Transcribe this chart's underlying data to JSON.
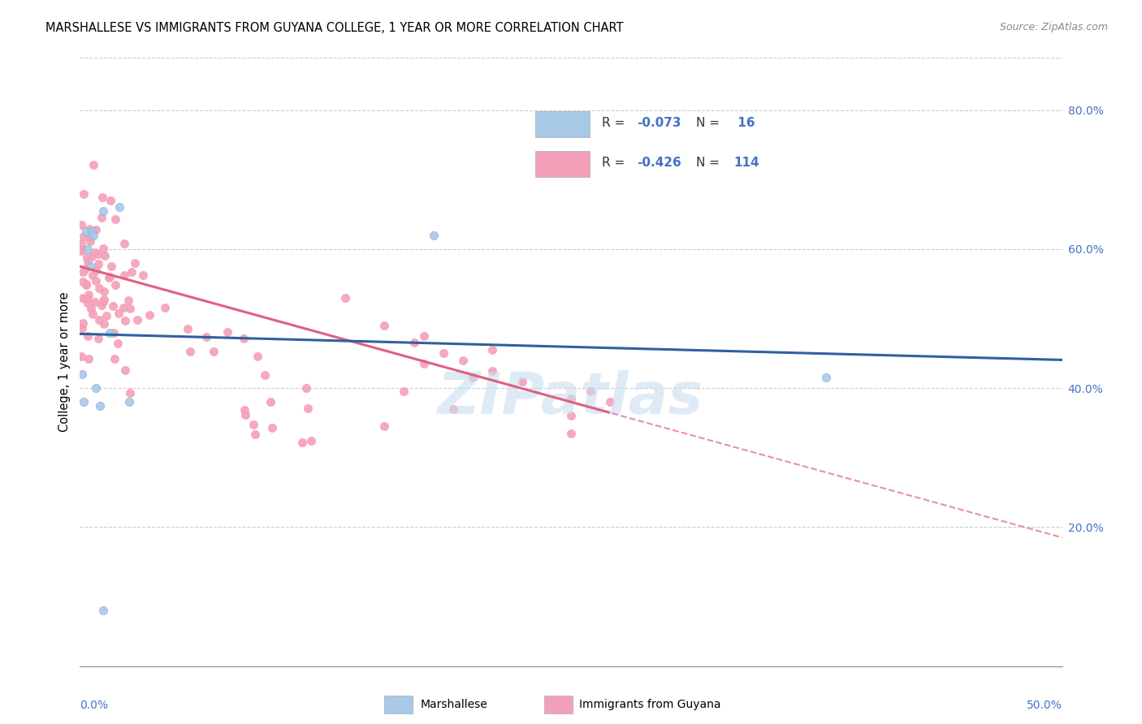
{
  "title": "MARSHALLESE VS IMMIGRANTS FROM GUYANA COLLEGE, 1 YEAR OR MORE CORRELATION CHART",
  "source": "Source: ZipAtlas.com",
  "ylabel": "College, 1 year or more",
  "right_ytick_vals": [
    0.2,
    0.4,
    0.6,
    0.8
  ],
  "xlim": [
    0.0,
    0.5
  ],
  "ylim": [
    0.0,
    0.875
  ],
  "marshallese_R": -0.073,
  "marshallese_N": 16,
  "guyana_R": -0.426,
  "guyana_N": 114,
  "marshallese_color": "#a8c8e8",
  "guyana_color": "#f4a0b8",
  "marshallese_line_color": "#3060a0",
  "guyana_line_color": "#e06080",
  "legend_label_marshallese": "Marshallese",
  "legend_label_guyana": "Immigrants from Guyana",
  "watermark": "ZIPatlas",
  "watermark_color": "#c8dff0"
}
